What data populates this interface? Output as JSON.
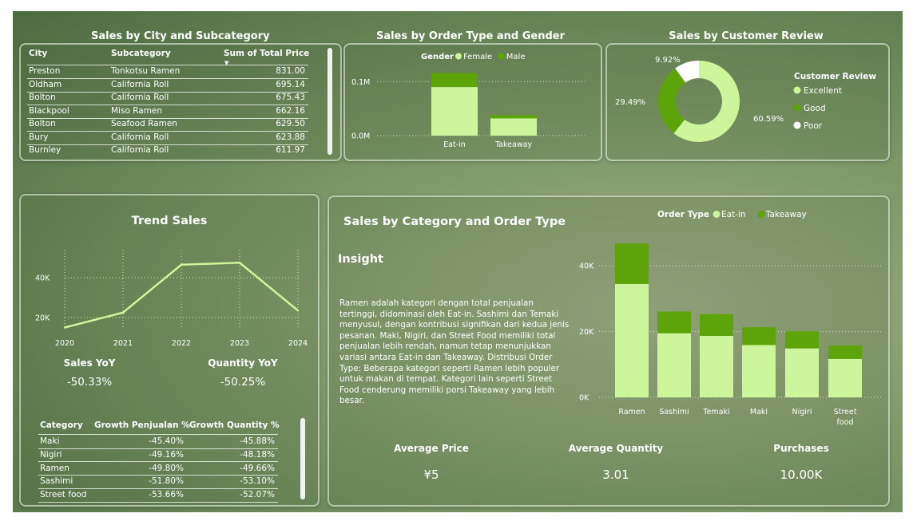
{
  "colors": {
    "light_green": "#cdf59b",
    "dark_green": "#5da40a",
    "white": "#ffffff",
    "grid": "#d8e4cc"
  },
  "city_table": {
    "title": "Sales by City and Subcategory",
    "headers": [
      "City",
      "Subcategory",
      "Sum of Total Price"
    ],
    "rows": [
      [
        "Preston",
        "Tonkotsu Ramen",
        "831.00"
      ],
      [
        "Oldham",
        "California Roll",
        "695.14"
      ],
      [
        "Bolton",
        "California Roll",
        "675.43"
      ],
      [
        "Blackpool",
        "Miso Ramen",
        "662.16"
      ],
      [
        "Bolton",
        "Seafood Ramen",
        "629.50"
      ],
      [
        "Bury",
        "California Roll",
        "623.88"
      ],
      [
        "Burnley",
        "California Roll",
        "611.97"
      ]
    ]
  },
  "trend_kpis": {
    "sales_yoy_label": "Sales YoY",
    "sales_yoy_value": "-50.33%",
    "quantity_yoy_label": "Quantity YoY",
    "quantity_yoy_value": "-50.25%"
  },
  "growth_table": {
    "headers": [
      "Category",
      "Growth Penjualan %",
      "Growth Quantity %"
    ],
    "rows": [
      [
        "Maki",
        "-45.40%",
        "-45.88%"
      ],
      [
        "Nigiri",
        "-49.16%",
        "-48.18%"
      ],
      [
        "Ramen",
        "-49.80%",
        "-49.66%"
      ],
      [
        "Sashimi",
        "-51.80%",
        "-53.10%"
      ],
      [
        "Street food",
        "-53.66%",
        "-52.07%"
      ]
    ]
  },
  "insight": {
    "heading": "Insight",
    "text": "Ramen adalah kategori dengan total penjualan tertinggi, didominasi oleh Eat-in. Sashimi dan Temaki menyusul, dengan kontribusi signifikan dari kedua jenis pesanan. Maki, Nigiri, dan Street Food memiliki total penjualan lebih rendah, namun tetap menunjukkan variasi antara Eat-in dan Takeaway. Distribusi Order Type: Beberapa kategori seperti Ramen lebih populer untuk makan di tempat. Kategori lain seperti Street Food cenderung memiliki porsi Takeaway yang lebih besar."
  },
  "bottom_kpis": {
    "avg_price_label": "Average Price",
    "avg_price_value": "¥5",
    "avg_qty_label": "Average Quantity",
    "avg_qty_value": "3.01",
    "purchases_label": "Purchases",
    "purchases_value": "10.00K"
  },
  "chart_data": [
    {
      "id": "order_gender",
      "type": "bar",
      "stacked": true,
      "title": "Sales by Order Type and Gender",
      "legend_title": "Gender",
      "legend_position": "top",
      "categories": [
        "Eat-in",
        "Takeaway"
      ],
      "series": [
        {
          "name": "Female",
          "color": "#cdf59b",
          "values": [
            90000,
            32000
          ]
        },
        {
          "name": "Male",
          "color": "#5da40a",
          "values": [
            26000,
            6000
          ]
        }
      ],
      "yticks": [
        0,
        100000
      ],
      "ytick_labels": [
        "0.0M",
        "0.1M"
      ],
      "ylim": [
        0,
        130000
      ],
      "grid": true
    },
    {
      "id": "review",
      "type": "pie",
      "donut": true,
      "title": "Sales by Customer Review",
      "legend_title": "Customer Review",
      "legend_position": "right",
      "slices": [
        {
          "name": "Excellent",
          "value": 60.59,
          "label": "60.59%",
          "color": "#cdf59b"
        },
        {
          "name": "Good",
          "value": 29.49,
          "label": "29.49%",
          "color": "#5da40a"
        },
        {
          "name": "Poor",
          "value": 9.92,
          "label": "9.92%",
          "color": "#ffffff"
        }
      ]
    },
    {
      "id": "trend",
      "type": "line",
      "title": "Trend Sales",
      "x": [
        "2020",
        "2021",
        "2022",
        "2023",
        "2024"
      ],
      "values": [
        15000,
        22500,
        46500,
        47500,
        23500
      ],
      "yticks": [
        20000,
        40000
      ],
      "ytick_labels": [
        "20K",
        "40K"
      ],
      "ylim": [
        12000,
        52000
      ],
      "grid": true,
      "color": "#cdf59b"
    },
    {
      "id": "category_order",
      "type": "bar",
      "stacked": true,
      "title": "Sales by Category and Order Type",
      "legend_title": "Order Type",
      "legend_position": "top",
      "categories": [
        "Ramen",
        "Sashimi",
        "Temaki",
        "Maki",
        "Nigiri",
        "Street food"
      ],
      "category_lines": [
        [
          "Ramen"
        ],
        [
          "Sashimi"
        ],
        [
          "Temaki"
        ],
        [
          "Maki"
        ],
        [
          "Nigiri"
        ],
        [
          "Street",
          "food"
        ]
      ],
      "series": [
        {
          "name": "Eat-in",
          "color": "#cdf59b",
          "values": [
            34500,
            19500,
            18700,
            15900,
            14900,
            11700
          ]
        },
        {
          "name": "Takeaway",
          "color": "#5da40a",
          "values": [
            12300,
            6600,
            6600,
            5400,
            5200,
            4100
          ]
        }
      ],
      "yticks": [
        0,
        20000,
        40000
      ],
      "ytick_labels": [
        "0K",
        "20K",
        "40K"
      ],
      "ylim": [
        0,
        50000
      ],
      "grid": true
    }
  ]
}
